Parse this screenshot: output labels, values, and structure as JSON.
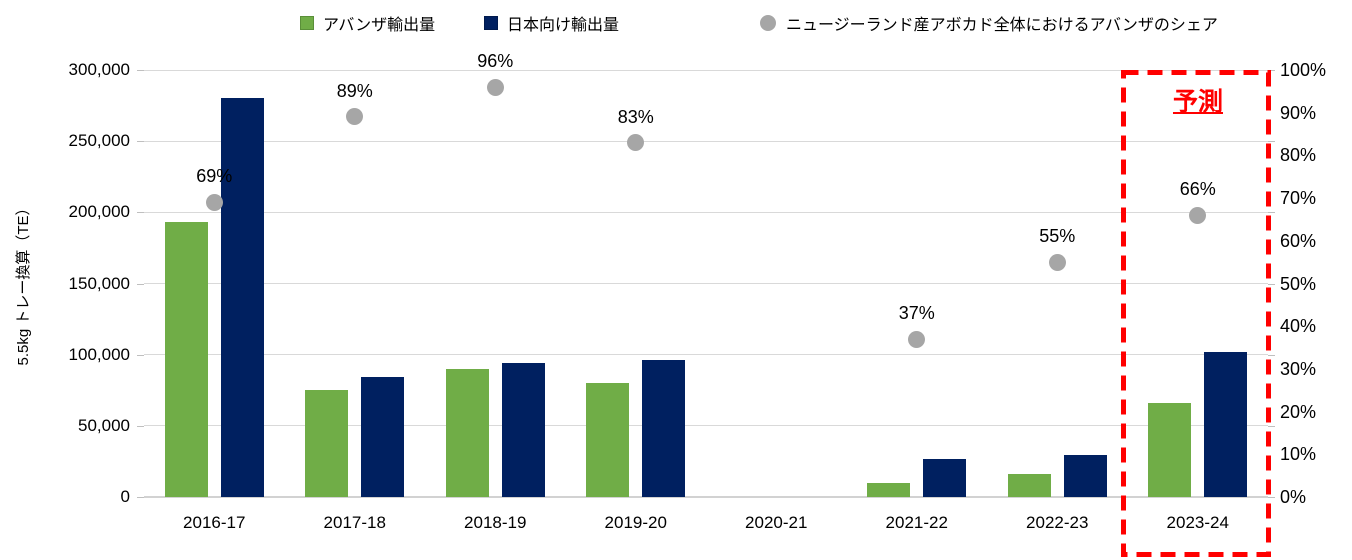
{
  "page": {
    "background": "#ffffff"
  },
  "legend": {
    "items": [
      {
        "key": "avanza_exports",
        "label": "アバンザ輸出量",
        "marker": "square",
        "color": "#70AD47",
        "border": "#5a8f39"
      },
      {
        "key": "japan_exports",
        "label": "日本向け輸出量",
        "marker": "square",
        "color": "#002060",
        "border": "#001a4d"
      },
      {
        "key": "avanza_share",
        "label": "ニュージーランド産アボカド全体におけるアバンザのシェア",
        "marker": "circle",
        "color": "#A6A6A6",
        "border": "#A6A6A6"
      }
    ]
  },
  "chart_data": {
    "type": "bar",
    "title": "",
    "categories": [
      "2016-17",
      "2017-18",
      "2018-19",
      "2019-20",
      "2020-21",
      "2021-22",
      "2022-23",
      "2023-24"
    ],
    "series": [
      {
        "key": "avanza_exports",
        "name": "アバンザ輸出量",
        "type": "bar",
        "axis": "left",
        "color": "#70AD47",
        "values": [
          193000,
          75000,
          90000,
          80000,
          null,
          9500,
          16000,
          66000
        ]
      },
      {
        "key": "japan_exports",
        "name": "日本向け輸出量",
        "type": "bar",
        "axis": "left",
        "color": "#002060",
        "values": [
          280000,
          84000,
          94000,
          96000,
          null,
          27000,
          29500,
          102000
        ]
      },
      {
        "key": "avanza_share",
        "name": "ニュージーランド産アボカド全体におけるアバンザのシェア",
        "type": "scatter",
        "axis": "right",
        "color": "#A6A6A6",
        "values": [
          69,
          89,
          96,
          83,
          null,
          37,
          55,
          66
        ],
        "point_labels": [
          "69%",
          "89%",
          "96%",
          "83%",
          "",
          "37%",
          "55%",
          "66%"
        ]
      }
    ],
    "left_axis": {
      "title": "5.5kg トレー換算（TE）",
      "min": 0,
      "max": 300000,
      "step": 50000,
      "tick_labels": [
        "0",
        "50,000",
        "100,000",
        "150,000",
        "200,000",
        "250,000",
        "300,000"
      ]
    },
    "right_axis": {
      "title": "",
      "min": 0,
      "max": 100,
      "step": 10,
      "tick_labels": [
        "0%",
        "10%",
        "20%",
        "30%",
        "40%",
        "50%",
        "60%",
        "70%",
        "80%",
        "90%",
        "100%"
      ]
    },
    "grid": true,
    "legend_position": "top",
    "forecast_box": {
      "label": "予測",
      "category": "2023-24",
      "color": "#FF0000"
    }
  },
  "colors": {
    "gridline": "#D9D9D9",
    "axis_tick": "#BFBFBF",
    "text": "#000000"
  }
}
